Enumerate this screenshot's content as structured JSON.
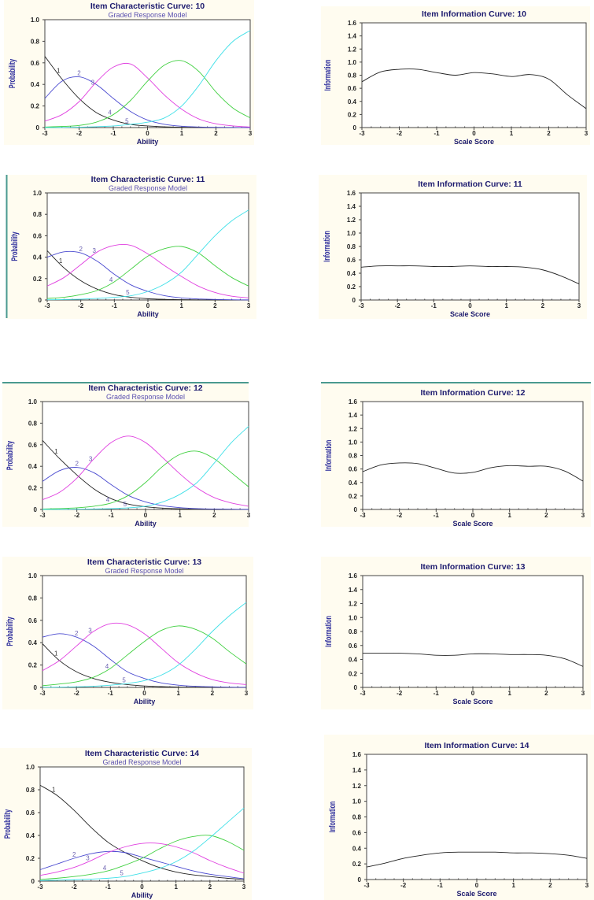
{
  "colors": {
    "panel_bg": "#fffcf0",
    "title": "#1c1a6e",
    "subtitle": "#5a50b0",
    "accent_line": "#4a9a90",
    "categories": [
      "#222222",
      "#4a4ad0",
      "#e040e0",
      "#40d040",
      "#40e0e8"
    ],
    "info_line": "#222222"
  },
  "chart_data": [
    {
      "type": "line",
      "title": "Item Characteristic Curve: 10",
      "subtitle": "Graded Response Model",
      "xlabel": "Ability",
      "ylabel": "Probability",
      "xlim": [
        -3,
        3
      ],
      "ylim": [
        0,
        1
      ],
      "x": [
        -3,
        -2.5,
        -2,
        -1.5,
        -1,
        -0.5,
        0,
        0.5,
        1,
        1.5,
        2,
        2.5,
        3
      ],
      "xticks": [
        "-3",
        "-2",
        "-1",
        "0",
        "1",
        "2",
        "3"
      ],
      "yticks": [
        "0",
        "0.2",
        "0.4",
        "0.6",
        "0.8",
        "1.0"
      ],
      "series": [
        {
          "name": "1",
          "values": [
            0.66,
            0.45,
            0.27,
            0.14,
            0.07,
            0.03,
            0.015,
            0.007,
            0.003,
            0.001,
            0,
            0,
            0
          ]
        },
        {
          "name": "2",
          "values": [
            0.27,
            0.43,
            0.47,
            0.4,
            0.27,
            0.15,
            0.07,
            0.03,
            0.012,
            0.005,
            0.002,
            0.001,
            0
          ]
        },
        {
          "name": "3",
          "values": [
            0.06,
            0.12,
            0.24,
            0.42,
            0.56,
            0.59,
            0.46,
            0.3,
            0.17,
            0.08,
            0.035,
            0.015,
            0.005
          ]
        },
        {
          "name": "4",
          "values": [
            0.005,
            0.01,
            0.02,
            0.05,
            0.12,
            0.25,
            0.43,
            0.58,
            0.62,
            0.52,
            0.33,
            0.18,
            0.09
          ]
        },
        {
          "name": "5",
          "values": [
            0,
            0.001,
            0.003,
            0.008,
            0.015,
            0.03,
            0.05,
            0.09,
            0.2,
            0.39,
            0.62,
            0.8,
            0.9
          ]
        }
      ]
    },
    {
      "type": "line",
      "title": "Item Information Curve: 10",
      "xlabel": "Scale Score",
      "ylabel": "Information",
      "xlim": [
        -3,
        3
      ],
      "ylim": [
        0,
        1.6
      ],
      "x": [
        -3,
        -2.5,
        -2,
        -1.5,
        -1,
        -0.5,
        0,
        0.5,
        1,
        1.5,
        2,
        2.5,
        3
      ],
      "xticks": [
        "-3",
        "-2",
        "-1",
        "0",
        "1",
        "2",
        "3"
      ],
      "yticks": [
        "0",
        "0.2",
        "0.4",
        "0.6",
        "0.8",
        "1.0",
        "1.2",
        "1.4",
        "1.6"
      ],
      "series": [
        {
          "values": [
            0.7,
            0.85,
            0.89,
            0.89,
            0.84,
            0.8,
            0.84,
            0.82,
            0.78,
            0.81,
            0.74,
            0.5,
            0.29
          ]
        }
      ]
    },
    {
      "type": "line",
      "title": "Item Characteristic Curve: 11",
      "subtitle": "Graded Response Model",
      "xlabel": "Ability",
      "ylabel": "Probability",
      "xlim": [
        -3,
        3
      ],
      "ylim": [
        0,
        1
      ],
      "x": [
        -3,
        -2.5,
        -2,
        -1.5,
        -1,
        -0.5,
        0,
        0.5,
        1,
        1.5,
        2,
        2.5,
        3
      ],
      "xticks": [
        "-3",
        "-2",
        "-1",
        "0",
        "1",
        "2",
        "3"
      ],
      "yticks": [
        "0",
        "0.2",
        "0.4",
        "0.6",
        "0.8",
        "1.0"
      ],
      "series": [
        {
          "name": "1",
          "values": [
            0.46,
            0.3,
            0.18,
            0.1,
            0.05,
            0.025,
            0.012,
            0.006,
            0.003,
            0.001,
            0,
            0,
            0
          ]
        },
        {
          "name": "2",
          "values": [
            0.4,
            0.45,
            0.44,
            0.36,
            0.24,
            0.14,
            0.08,
            0.04,
            0.02,
            0.01,
            0.005,
            0.002,
            0.001
          ]
        },
        {
          "name": "3",
          "values": [
            0.13,
            0.21,
            0.33,
            0.45,
            0.51,
            0.51,
            0.43,
            0.32,
            0.22,
            0.13,
            0.07,
            0.035,
            0.02
          ]
        },
        {
          "name": "4",
          "values": [
            0.015,
            0.025,
            0.05,
            0.09,
            0.17,
            0.29,
            0.41,
            0.48,
            0.5,
            0.44,
            0.32,
            0.21,
            0.13
          ]
        },
        {
          "name": "5",
          "values": [
            0.002,
            0.004,
            0.008,
            0.015,
            0.025,
            0.04,
            0.08,
            0.15,
            0.26,
            0.43,
            0.6,
            0.74,
            0.84
          ]
        }
      ]
    },
    {
      "type": "line",
      "title": "Item Information Curve: 11",
      "xlabel": "Scale Score",
      "ylabel": "Information",
      "xlim": [
        -3,
        3
      ],
      "ylim": [
        0,
        1.6
      ],
      "x": [
        -3,
        -2.5,
        -2,
        -1.5,
        -1,
        -0.5,
        0,
        0.5,
        1,
        1.5,
        2,
        2.5,
        3
      ],
      "xticks": [
        "-3",
        "-2",
        "-1",
        "0",
        "1",
        "2",
        "3"
      ],
      "yticks": [
        "0",
        "0.2",
        "0.4",
        "0.6",
        "0.8",
        "1.0",
        "1.2",
        "1.4",
        "1.6"
      ],
      "series": [
        {
          "values": [
            0.49,
            0.51,
            0.51,
            0.51,
            0.5,
            0.5,
            0.51,
            0.5,
            0.5,
            0.49,
            0.45,
            0.36,
            0.24
          ]
        }
      ]
    },
    {
      "type": "line",
      "title": "Item Characteristic Curve: 12",
      "subtitle": "Graded Response Model",
      "xlabel": "Ability",
      "ylabel": "Probability",
      "xlim": [
        -3,
        3
      ],
      "ylim": [
        0,
        1
      ],
      "x": [
        -3,
        -2.5,
        -2,
        -1.5,
        -1,
        -0.5,
        0,
        0.5,
        1,
        1.5,
        2,
        2.5,
        3
      ],
      "xticks": [
        "-3",
        "-2",
        "-1",
        "0",
        "1",
        "2",
        "3"
      ],
      "yticks": [
        "0",
        "0.2",
        "0.4",
        "0.6",
        "0.8",
        "1.0"
      ],
      "series": [
        {
          "name": "1",
          "values": [
            0.64,
            0.47,
            0.32,
            0.19,
            0.1,
            0.05,
            0.025,
            0.012,
            0.006,
            0.003,
            0.001,
            0,
            0
          ]
        },
        {
          "name": "2",
          "values": [
            0.26,
            0.36,
            0.39,
            0.34,
            0.23,
            0.13,
            0.07,
            0.035,
            0.017,
            0.008,
            0.004,
            0.002,
            0.001
          ]
        },
        {
          "name": "3",
          "values": [
            0.09,
            0.16,
            0.29,
            0.47,
            0.62,
            0.68,
            0.62,
            0.48,
            0.33,
            0.2,
            0.11,
            0.06,
            0.03
          ]
        },
        {
          "name": "4",
          "values": [
            0.004,
            0.008,
            0.015,
            0.03,
            0.06,
            0.13,
            0.25,
            0.4,
            0.51,
            0.54,
            0.47,
            0.34,
            0.21
          ]
        },
        {
          "name": "5",
          "values": [
            0,
            0.001,
            0.002,
            0.004,
            0.008,
            0.015,
            0.03,
            0.07,
            0.14,
            0.25,
            0.43,
            0.62,
            0.77
          ]
        }
      ]
    },
    {
      "type": "line",
      "title": "Item Information Curve: 12",
      "xlabel": "Scale Score",
      "ylabel": "Information",
      "xlim": [
        -3,
        3
      ],
      "ylim": [
        0,
        1.6
      ],
      "x": [
        -3,
        -2.5,
        -2,
        -1.5,
        -1,
        -0.5,
        0,
        0.5,
        1,
        1.5,
        2,
        2.5,
        3
      ],
      "xticks": [
        "-3",
        "-2",
        "-1",
        "0",
        "1",
        "2",
        "3"
      ],
      "yticks": [
        "0",
        "0.2",
        "0.4",
        "0.6",
        "0.8",
        "1.0",
        "1.2",
        "1.4",
        "1.6"
      ],
      "series": [
        {
          "values": [
            0.56,
            0.66,
            0.69,
            0.68,
            0.61,
            0.54,
            0.55,
            0.62,
            0.65,
            0.64,
            0.64,
            0.57,
            0.42
          ]
        }
      ]
    },
    {
      "type": "line",
      "title": "Item Characteristic Curve: 13",
      "subtitle": "Graded Response Model",
      "xlabel": "Ability",
      "ylabel": "Probability",
      "xlim": [
        -3,
        3
      ],
      "ylim": [
        0,
        1
      ],
      "x": [
        -3,
        -2.5,
        -2,
        -1.5,
        -1,
        -0.5,
        0,
        0.5,
        1,
        1.5,
        2,
        2.5,
        3
      ],
      "xticks": [
        "-3",
        "-2",
        "-1",
        "0",
        "1",
        "2",
        "3"
      ],
      "yticks": [
        "0",
        "0.2",
        "0.4",
        "0.6",
        "0.8",
        "1.0"
      ],
      "series": [
        {
          "name": "1",
          "values": [
            0.39,
            0.24,
            0.14,
            0.08,
            0.045,
            0.025,
            0.013,
            0.007,
            0.003,
            0.002,
            0.001,
            0,
            0
          ]
        },
        {
          "name": "2",
          "values": [
            0.45,
            0.48,
            0.45,
            0.37,
            0.25,
            0.14,
            0.08,
            0.04,
            0.02,
            0.01,
            0.005,
            0.002,
            0.001
          ]
        },
        {
          "name": "3",
          "values": [
            0.15,
            0.24,
            0.37,
            0.5,
            0.57,
            0.56,
            0.48,
            0.35,
            0.22,
            0.13,
            0.07,
            0.04,
            0.025
          ]
        },
        {
          "name": "4",
          "values": [
            0.015,
            0.03,
            0.05,
            0.09,
            0.17,
            0.29,
            0.41,
            0.51,
            0.55,
            0.52,
            0.44,
            0.32,
            0.21
          ]
        },
        {
          "name": "5",
          "values": [
            0.001,
            0.002,
            0.005,
            0.01,
            0.02,
            0.035,
            0.06,
            0.11,
            0.2,
            0.34,
            0.5,
            0.64,
            0.76
          ]
        }
      ]
    },
    {
      "type": "line",
      "title": "Item Information Curve: 13",
      "xlabel": "Scale Score",
      "ylabel": "Information",
      "xlim": [
        -3,
        3
      ],
      "ylim": [
        0,
        1.6
      ],
      "x": [
        -3,
        -2.5,
        -2,
        -1.5,
        -1,
        -0.5,
        0,
        0.5,
        1,
        1.5,
        2,
        2.5,
        3
      ],
      "xticks": [
        "-3",
        "-2",
        "-1",
        "0",
        "1",
        "2",
        "3"
      ],
      "yticks": [
        "0",
        "0.2",
        "0.4",
        "0.6",
        "0.8",
        "1.0",
        "1.2",
        "1.4",
        "1.6"
      ],
      "series": [
        {
          "values": [
            0.49,
            0.49,
            0.49,
            0.48,
            0.46,
            0.46,
            0.48,
            0.48,
            0.47,
            0.47,
            0.46,
            0.41,
            0.3
          ]
        }
      ]
    },
    {
      "type": "line",
      "title": "Item Characteristic Curve: 14",
      "subtitle": "Graded Response Model",
      "xlabel": "Ability",
      "ylabel": "Probability",
      "xlim": [
        -3,
        3
      ],
      "ylim": [
        0,
        1
      ],
      "x": [
        -3,
        -2.5,
        -2,
        -1.5,
        -1,
        -0.5,
        0,
        0.5,
        1,
        1.5,
        2,
        2.5,
        3
      ],
      "xticks": [
        "-3",
        "-2",
        "-1",
        "0",
        "1",
        "2",
        "3"
      ],
      "yticks": [
        "0",
        "0.2",
        "0.4",
        "0.6",
        "0.8",
        "1.0"
      ],
      "series": [
        {
          "name": "1",
          "values": [
            0.84,
            0.75,
            0.62,
            0.47,
            0.34,
            0.25,
            0.18,
            0.12,
            0.08,
            0.055,
            0.04,
            0.025,
            0.015
          ]
        },
        {
          "name": "2",
          "values": [
            0.1,
            0.15,
            0.2,
            0.24,
            0.26,
            0.25,
            0.21,
            0.17,
            0.13,
            0.09,
            0.06,
            0.04,
            0.02
          ]
        },
        {
          "name": "3",
          "values": [
            0.05,
            0.08,
            0.12,
            0.18,
            0.25,
            0.3,
            0.33,
            0.33,
            0.3,
            0.25,
            0.18,
            0.12,
            0.07
          ]
        },
        {
          "name": "4",
          "values": [
            0.015,
            0.025,
            0.04,
            0.06,
            0.09,
            0.14,
            0.2,
            0.28,
            0.35,
            0.39,
            0.4,
            0.35,
            0.27
          ]
        },
        {
          "name": "5",
          "values": [
            0.005,
            0.008,
            0.012,
            0.018,
            0.025,
            0.04,
            0.07,
            0.11,
            0.17,
            0.26,
            0.38,
            0.51,
            0.64
          ]
        }
      ]
    },
    {
      "type": "line",
      "title": "Item Information Curve: 14",
      "xlabel": "Scale Score",
      "ylabel": "Information",
      "xlim": [
        -3,
        3
      ],
      "ylim": [
        0,
        1.6
      ],
      "x": [
        -3,
        -2.5,
        -2,
        -1.5,
        -1,
        -0.5,
        0,
        0.5,
        1,
        1.5,
        2,
        2.5,
        3
      ],
      "xticks": [
        "-3",
        "-2",
        "-1",
        "0",
        "1",
        "2",
        "3"
      ],
      "yticks": [
        "0",
        "0.2",
        "0.4",
        "0.6",
        "0.8",
        "1.0",
        "1.2",
        "1.4",
        "1.6"
      ],
      "series": [
        {
          "values": [
            0.16,
            0.21,
            0.27,
            0.31,
            0.34,
            0.35,
            0.35,
            0.35,
            0.34,
            0.34,
            0.33,
            0.31,
            0.27
          ]
        }
      ]
    }
  ]
}
